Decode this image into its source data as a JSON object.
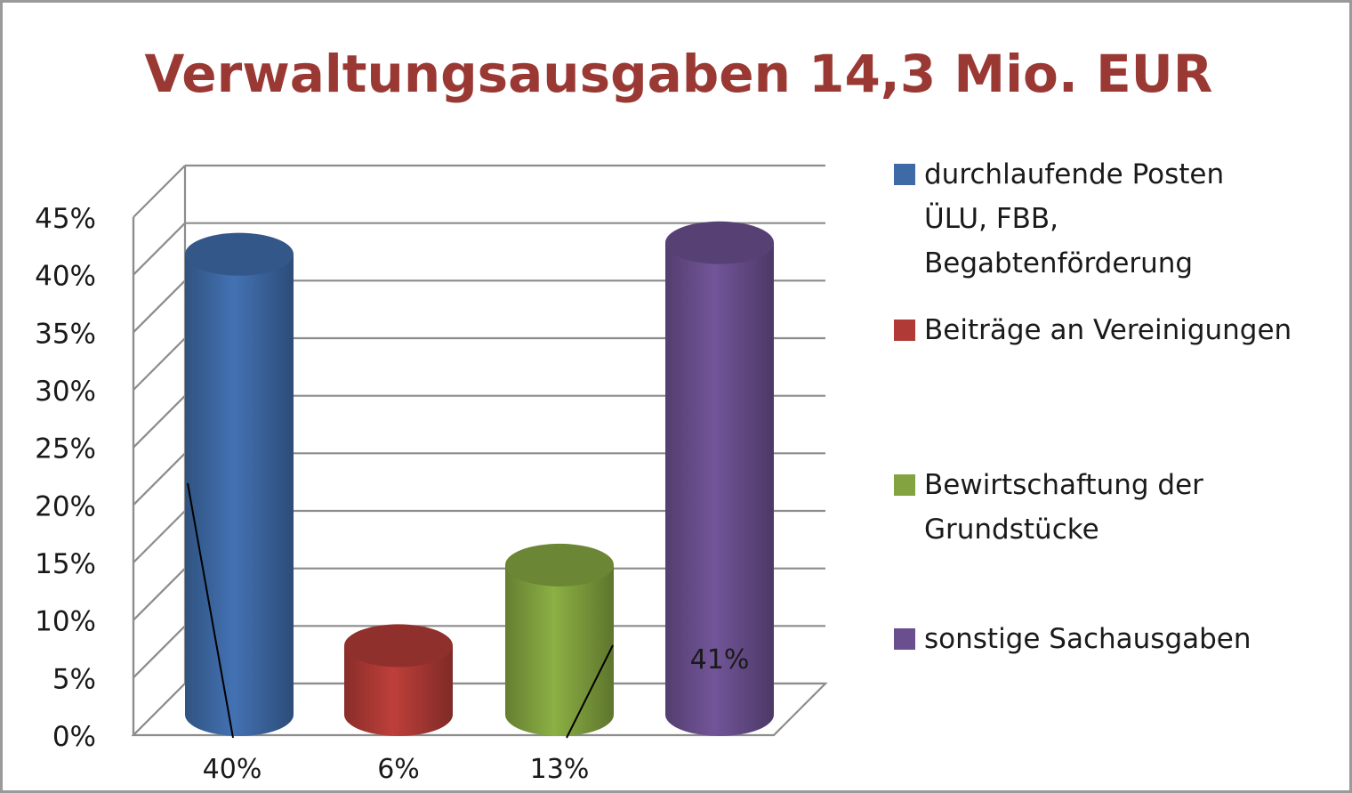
{
  "chart_data": {
    "type": "bar",
    "style": "3d-cylinder",
    "title": "Verwaltungsausgaben 14,3 Mio. EUR",
    "ylim": [
      0,
      45
    ],
    "yticks": [
      "0%",
      "5%",
      "10%",
      "15%",
      "20%",
      "25%",
      "30%",
      "35%",
      "40%",
      "45%"
    ],
    "grid": true,
    "legend_position": "right",
    "series": [
      {
        "name": "durchlaufende Posten ÜLU, FBB, Begabtenförderung",
        "legend_lines": [
          "durchlaufende Posten",
          "ÜLU, FBB,",
          "Begabtenförderung"
        ],
        "value": 40,
        "label": "40%",
        "color": "#3e6aa6"
      },
      {
        "name": "Beiträge an Vereinigungen",
        "legend_lines": [
          "Beiträge an Vereinigungen"
        ],
        "value": 6,
        "label": "6%",
        "color": "#b03a36"
      },
      {
        "name": "Bewirtschaftung der Grundstücke",
        "legend_lines": [
          "Bewirtschaftung der",
          "Grundstücke"
        ],
        "value": 13,
        "label": "13%",
        "color": "#82a33f"
      },
      {
        "name": "sonstige Sachausgaben",
        "legend_lines": [
          "sonstige Sachausgaben"
        ],
        "value": 41,
        "label": "41%",
        "color": "#6a4f8e"
      }
    ]
  },
  "colors": {
    "title": "#9a3934",
    "grid": "#8c8c8c",
    "text": "#1a1a1a"
  }
}
